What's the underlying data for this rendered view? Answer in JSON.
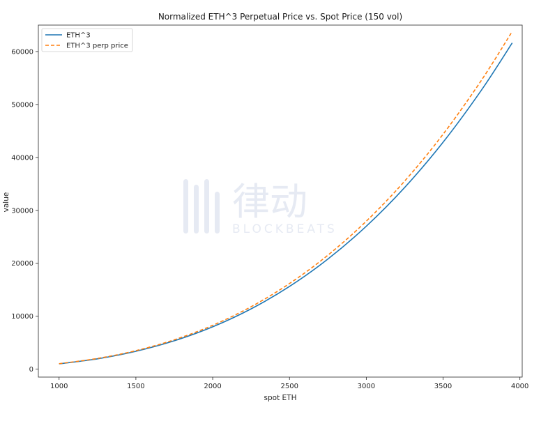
{
  "chart_data": {
    "type": "line",
    "title": "Normalized ETH^3 Perpetual Price vs. Spot Price (150 vol)",
    "xlabel": "spot ETH",
    "ylabel": "value",
    "xlim": [
      865,
      4015
    ],
    "ylim": [
      -1500,
      65000
    ],
    "xticks": [
      1000,
      1500,
      2000,
      2500,
      3000,
      3500,
      4000
    ],
    "yticks": [
      0,
      10000,
      20000,
      30000,
      40000,
      50000,
      60000
    ],
    "grid": false,
    "legend_position": "top-left",
    "series": [
      {
        "name": "ETH^3",
        "color": "#1f77b4",
        "style": "solid",
        "x": [
          1000,
          1250,
          1500,
          1750,
          2000,
          2250,
          2500,
          2750,
          3000,
          3250,
          3500,
          3750,
          3950
        ],
        "y": [
          1000,
          1953,
          3375,
          5359,
          8000,
          11391,
          15625,
          20797,
          27000,
          34328,
          42875,
          52734,
          61630
        ]
      },
      {
        "name": "ETH^3 perp price",
        "color": "#ff7f0e",
        "style": "dashed",
        "x": [
          1000,
          1250,
          1500,
          1750,
          2000,
          2250,
          2500,
          2750,
          3000,
          3250,
          3500,
          3750,
          3950
        ],
        "y": [
          1035,
          2022,
          3494,
          5548,
          8282,
          11793,
          16176,
          21531,
          27952,
          35539,
          44387,
          54594,
          63800
        ]
      }
    ]
  },
  "watermark": {
    "cn": "律动",
    "en": "BLOCKBEATS"
  }
}
